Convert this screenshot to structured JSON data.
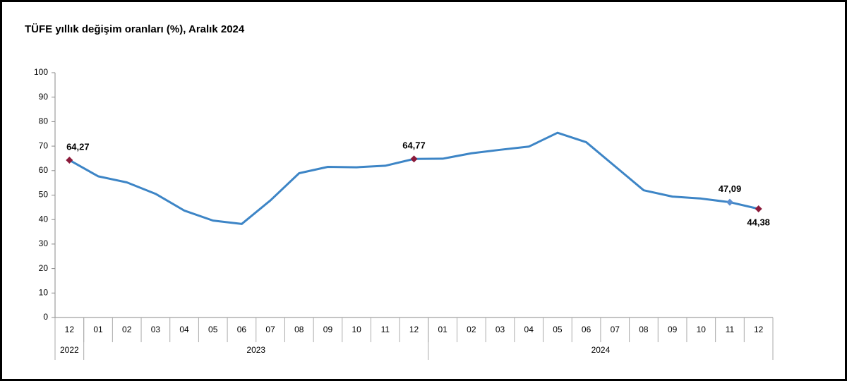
{
  "chart_data": {
    "type": "line",
    "title": "TÜFE yıllık değişim oranları (%), Aralık 2024",
    "categories": [
      "12",
      "01",
      "02",
      "03",
      "04",
      "05",
      "06",
      "07",
      "08",
      "09",
      "10",
      "11",
      "12",
      "01",
      "02",
      "03",
      "04",
      "05",
      "06",
      "07",
      "08",
      "09",
      "10",
      "11",
      "12"
    ],
    "x_groups": [
      {
        "label": "2022",
        "start": 0,
        "end": 0
      },
      {
        "label": "2023",
        "start": 1,
        "end": 12
      },
      {
        "label": "2024",
        "start": 13,
        "end": 24
      }
    ],
    "series": [
      {
        "name": "TÜFE",
        "color": "#3d85c6",
        "values": [
          64.27,
          57.68,
          55.18,
          50.51,
          43.68,
          39.59,
          38.21,
          47.83,
          58.94,
          61.53,
          61.36,
          61.98,
          64.77,
          64.86,
          67.07,
          68.5,
          69.8,
          75.45,
          71.6,
          61.78,
          51.97,
          49.38,
          48.58,
          47.09,
          44.38
        ],
        "value_labels": [
          "64,27",
          null,
          null,
          null,
          null,
          null,
          null,
          null,
          null,
          null,
          null,
          null,
          "64,77",
          null,
          null,
          null,
          null,
          null,
          null,
          null,
          null,
          null,
          null,
          "47,09",
          "44,38"
        ],
        "marker_colors": [
          "#8b1a3a",
          null,
          null,
          null,
          null,
          null,
          null,
          null,
          null,
          null,
          null,
          null,
          "#8b1a3a",
          null,
          null,
          null,
          null,
          null,
          null,
          null,
          null,
          null,
          null,
          "#5b8fd0",
          "#8b1a3a"
        ]
      }
    ],
    "ylim": [
      0,
      100
    ],
    "yticks": [
      0,
      10,
      20,
      30,
      40,
      50,
      60,
      70,
      80,
      90,
      100
    ]
  }
}
